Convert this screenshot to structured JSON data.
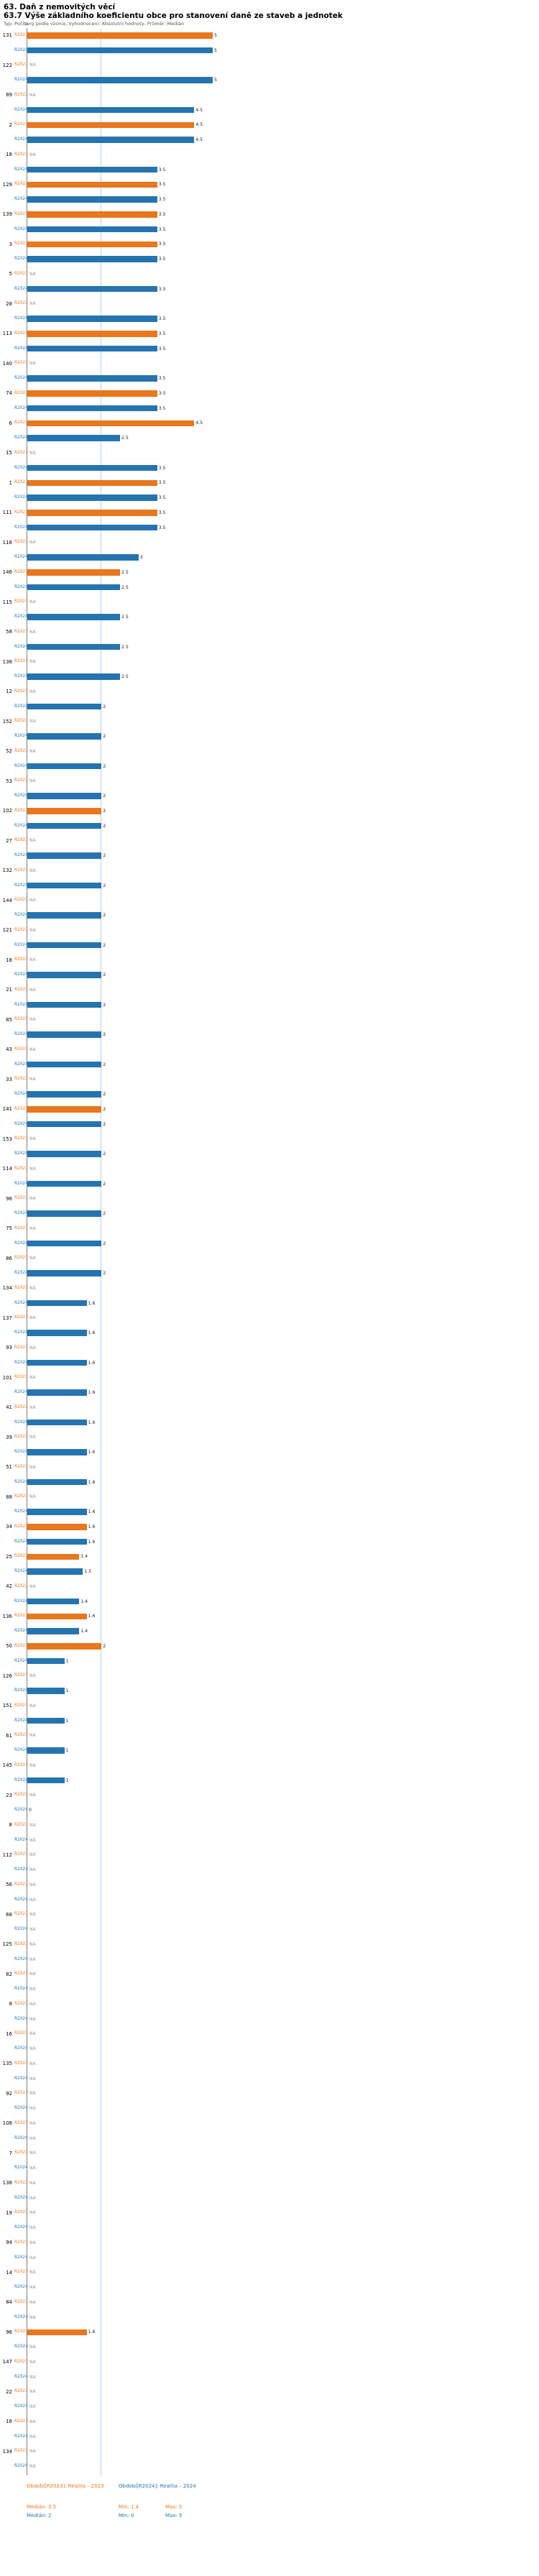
{
  "header": {
    "title": "63. Daň z nemovitých věcí",
    "subtitle": "63.7 Výše základního koeficientu obce pro stanovení daně ze staveb a jednotek",
    "meta": "Typ: Počítaný podle vzorce, Vyhodnocení: Absolutní hodnoty, Průměr: Medián",
    "axis_label": "n"
  },
  "colors": {
    "r2023": "#e8771e",
    "r2024": "#2574b0",
    "na_text": "#999999",
    "reference_line": "#b9cfe2"
  },
  "legend": {
    "r2023": {
      "label": "Období[R2023]: Realita – 2023",
      "median": "Medián: 3.5",
      "min": "Min: 1.4",
      "max": "Max: 5"
    },
    "r2024": {
      "label": "Období[R2024]: Realita – 2024",
      "median": "Medián: 2",
      "min": "Min: 0",
      "max": "Max: 5"
    }
  },
  "chart_data": {
    "type": "bar",
    "orientation": "horizontal",
    "title": "63.7 Výše základního koeficientu obce pro stanovení daně ze staveb a jednotek",
    "series_names": [
      "R2023",
      "R2024"
    ],
    "xlim": [
      0,
      5.5
    ],
    "reference_line_value": 2,
    "na_text": "NA",
    "stats": {
      "r2023": {
        "median": 3.5,
        "min": 1.4,
        "max": 5
      },
      "r2024": {
        "median": 2,
        "min": 0,
        "max": 5
      }
    },
    "groups": [
      {
        "id": "131",
        "r2023": "5",
        "r2024": "5"
      },
      {
        "id": "122",
        "r2023": "NA",
        "r2024": "5"
      },
      {
        "id": "89",
        "r2023": "NA",
        "r2024": "4.5"
      },
      {
        "id": "2",
        "r2023": "4.5",
        "r2024": "4.5"
      },
      {
        "id": "18",
        "r2023": "NA",
        "r2024": "3.5"
      },
      {
        "id": "129",
        "r2023": "3.5",
        "r2024": "3.5"
      },
      {
        "id": "139",
        "r2023": "3.5",
        "r2024": "3.5"
      },
      {
        "id": "3",
        "r2023": "3.5",
        "r2024": "3.5"
      },
      {
        "id": "5",
        "r2023": "NA",
        "r2024": "3.5"
      },
      {
        "id": "28",
        "r2023": "NA",
        "r2024": "3.5"
      },
      {
        "id": "113",
        "r2023": "3.5",
        "r2024": "3.5"
      },
      {
        "id": "140",
        "r2023": "NA",
        "r2024": "3.5"
      },
      {
        "id": "74",
        "r2023": "3.5",
        "r2024": "3.5"
      },
      {
        "id": "6",
        "r2023": "4.5",
        "r2024": "2.5"
      },
      {
        "id": "15",
        "r2023": "NA",
        "r2024": "3.5"
      },
      {
        "id": "1",
        "r2023": "3.5",
        "r2024": "3.5"
      },
      {
        "id": "111",
        "r2023": "3.5",
        "r2024": "3.5"
      },
      {
        "id": "118",
        "r2023": "NA",
        "r2024": "3"
      },
      {
        "id": "146",
        "r2023": "2.5",
        "r2024": "2.5"
      },
      {
        "id": "115",
        "r2023": "NA",
        "r2024": "2.5"
      },
      {
        "id": "58",
        "r2023": "NA",
        "r2024": "2.5"
      },
      {
        "id": "138",
        "r2023": "NA",
        "r2024": "2.5"
      },
      {
        "id": "12",
        "r2023": "NA",
        "r2024": "2"
      },
      {
        "id": "152",
        "r2023": "NA",
        "r2024": "2"
      },
      {
        "id": "52",
        "r2023": "NA",
        "r2024": "2"
      },
      {
        "id": "53",
        "r2023": "NA",
        "r2024": "2"
      },
      {
        "id": "102",
        "r2023": "2",
        "r2024": "2"
      },
      {
        "id": "27",
        "r2023": "NA",
        "r2024": "2"
      },
      {
        "id": "132",
        "r2023": "NA",
        "r2024": "2"
      },
      {
        "id": "144",
        "r2023": "NA",
        "r2024": "2"
      },
      {
        "id": "121",
        "r2023": "NA",
        "r2024": "2"
      },
      {
        "id": "18",
        "r2023": "NA",
        "r2024": "2"
      },
      {
        "id": "21",
        "r2023": "NA",
        "r2024": "2"
      },
      {
        "id": "85",
        "r2023": "NA",
        "r2024": "2"
      },
      {
        "id": "43",
        "r2023": "NA",
        "r2024": "2"
      },
      {
        "id": "33",
        "r2023": "NA",
        "r2024": "2"
      },
      {
        "id": "141",
        "r2023": "2",
        "r2024": "2"
      },
      {
        "id": "153",
        "r2023": "NA",
        "r2024": "2"
      },
      {
        "id": "114",
        "r2023": "NA",
        "r2024": "2"
      },
      {
        "id": "98",
        "r2023": "NA",
        "r2024": "2"
      },
      {
        "id": "75",
        "r2023": "NA",
        "r2024": "2"
      },
      {
        "id": "86",
        "r2023": "NA",
        "r2024": "2"
      },
      {
        "id": "134",
        "r2023": "NA",
        "r2024": "1.6"
      },
      {
        "id": "137",
        "r2023": "NA",
        "r2024": "1.6"
      },
      {
        "id": "93",
        "r2023": "NA",
        "r2024": "1.6"
      },
      {
        "id": "101",
        "r2023": "NA",
        "r2024": "1.6"
      },
      {
        "id": "41",
        "r2023": "NA",
        "r2024": "1.6"
      },
      {
        "id": "39",
        "r2023": "NA",
        "r2024": "1.6"
      },
      {
        "id": "51",
        "r2023": "NA",
        "r2024": "1.6"
      },
      {
        "id": "88",
        "r2023": "NA",
        "r2024": "1.6"
      },
      {
        "id": "34",
        "r2023": "1.6",
        "r2024": "1.6"
      },
      {
        "id": "25",
        "r2023": "1.4",
        "r2024": "1.5"
      },
      {
        "id": "42",
        "r2023": "NA",
        "r2024": "1.4"
      },
      {
        "id": "136",
        "r2023": "1.6",
        "r2024": "1.4"
      },
      {
        "id": "50",
        "r2023": "2",
        "r2024": "1"
      },
      {
        "id": "126",
        "r2023": "NA",
        "r2024": "1"
      },
      {
        "id": "151",
        "r2023": "NA",
        "r2024": "1"
      },
      {
        "id": "61",
        "r2023": "NA",
        "r2024": "1"
      },
      {
        "id": "145",
        "r2023": "NA",
        "r2024": "1"
      },
      {
        "id": "23",
        "r2023": "NA",
        "r2024": "0"
      },
      {
        "id": "8",
        "r2023": "NA",
        "r2024": "NA"
      },
      {
        "id": "112",
        "r2023": "NA",
        "r2024": "NA"
      },
      {
        "id": "56",
        "r2023": "NA",
        "r2024": "NA"
      },
      {
        "id": "68",
        "r2023": "NA",
        "r2024": "NA"
      },
      {
        "id": "125",
        "r2023": "NA",
        "r2024": "NA"
      },
      {
        "id": "82",
        "r2023": "NA",
        "r2024": "NA"
      },
      {
        "id": "8",
        "r2023": "NA",
        "r2024": "NA"
      },
      {
        "id": "16",
        "r2023": "NA",
        "r2024": "NA"
      },
      {
        "id": "135",
        "r2023": "NA",
        "r2024": "NA"
      },
      {
        "id": "92",
        "r2023": "NA",
        "r2024": "NA"
      },
      {
        "id": "108",
        "r2023": "NA",
        "r2024": "NA"
      },
      {
        "id": "7",
        "r2023": "NA",
        "r2024": "NA"
      },
      {
        "id": "138",
        "r2023": "NA",
        "r2024": "NA"
      },
      {
        "id": "19",
        "r2023": "NA",
        "r2024": "NA"
      },
      {
        "id": "94",
        "r2023": "NA",
        "r2024": "NA"
      },
      {
        "id": "14",
        "r2023": "NA",
        "r2024": "NA"
      },
      {
        "id": "84",
        "r2023": "NA",
        "r2024": "NA"
      },
      {
        "id": "96",
        "r2023": "1.6",
        "r2024": "NA"
      },
      {
        "id": "147",
        "r2023": "NA",
        "r2024": "NA"
      },
      {
        "id": "22",
        "r2023": "NA",
        "r2024": "NA"
      },
      {
        "id": "16",
        "r2023": "NA",
        "r2024": "NA"
      },
      {
        "id": "134",
        "r2023": "NA",
        "r2024": "NA"
      }
    ]
  }
}
